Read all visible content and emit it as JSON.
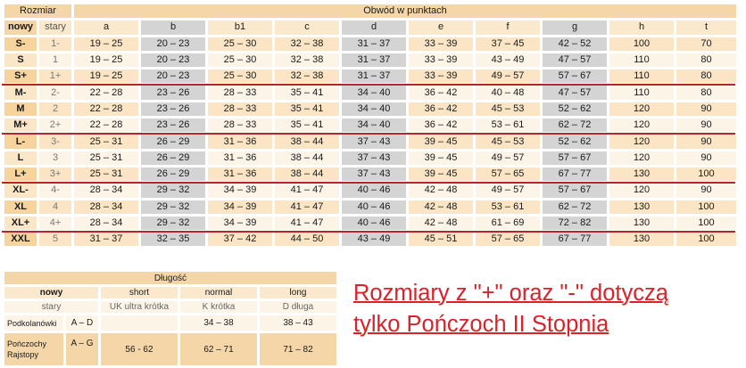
{
  "header": {
    "rozmiar": "Rozmiar",
    "obwod": "Obwód w punktach",
    "nowy": "nowy",
    "stary": "stary",
    "columns": [
      "a",
      "b",
      "b1",
      "c",
      "d",
      "e",
      "f",
      "g",
      "h",
      "t"
    ]
  },
  "rows": [
    {
      "nowy": "S-",
      "stary": "1-",
      "cells": [
        "19 – 25",
        "20 – 23",
        "25 – 30",
        "32 – 38",
        "31 – 37",
        "33 – 39",
        "37 – 45",
        "42 – 52",
        "100",
        "70"
      ]
    },
    {
      "nowy": "S",
      "stary": "1",
      "cells": [
        "19 – 25",
        "20 – 23",
        "25 – 30",
        "32 – 38",
        "31 – 37",
        "33 – 39",
        "43 – 49",
        "47 – 57",
        "110",
        "80"
      ]
    },
    {
      "nowy": "S+",
      "stary": "1+",
      "cells": [
        "19 – 25",
        "20 – 23",
        "25 – 30",
        "32 – 38",
        "31 – 37",
        "33 – 39",
        "49 – 57",
        "57 – 67",
        "110",
        "80"
      ]
    },
    {
      "nowy": "M-",
      "stary": "2-",
      "cells": [
        "22 – 28",
        "23 – 26",
        "28 – 33",
        "35 – 41",
        "34 – 40",
        "36 – 42",
        "40 – 48",
        "47 – 57",
        "110",
        "80"
      ]
    },
    {
      "nowy": "M",
      "stary": "2",
      "cells": [
        "22 – 28",
        "23 – 26",
        "28 – 33",
        "35 – 41",
        "34 – 40",
        "36 – 42",
        "45 – 53",
        "52 – 62",
        "120",
        "90"
      ]
    },
    {
      "nowy": "M+",
      "stary": "2+",
      "cells": [
        "22 – 28",
        "23 – 26",
        "28 – 33",
        "35 – 41",
        "34 – 40",
        "36 – 42",
        "53 – 61",
        "62 – 72",
        "120",
        "90"
      ]
    },
    {
      "nowy": "L-",
      "stary": "3-",
      "cells": [
        "25 – 31",
        "26 – 29",
        "31 – 36",
        "38 – 44",
        "37 – 43",
        "39 – 45",
        "45 – 53",
        "52 – 62",
        "120",
        "90"
      ]
    },
    {
      "nowy": "L",
      "stary": "3",
      "cells": [
        "25 – 31",
        "26 – 29",
        "31 – 36",
        "38 – 44",
        "37 – 43",
        "39 – 45",
        "49 – 57",
        "57 – 67",
        "120",
        "90"
      ]
    },
    {
      "nowy": "L+",
      "stary": "3+",
      "cells": [
        "25 – 31",
        "26 – 29",
        "31 – 36",
        "38 – 44",
        "37 – 43",
        "39 – 45",
        "57 – 65",
        "67 – 77",
        "130",
        "100"
      ]
    },
    {
      "nowy": "XL-",
      "stary": "4-",
      "cells": [
        "28 – 34",
        "29 – 32",
        "34 – 39",
        "41 – 47",
        "40 – 46",
        "42 – 48",
        "49 – 57",
        "57 – 67",
        "120",
        "90"
      ]
    },
    {
      "nowy": "XL",
      "stary": "4",
      "cells": [
        "28 – 34",
        "29 – 32",
        "34 – 39",
        "41 – 47",
        "40 – 46",
        "42 – 48",
        "53 – 61",
        "62 – 72",
        "130",
        "100"
      ]
    },
    {
      "nowy": "XL+",
      "stary": "4+",
      "cells": [
        "28 – 34",
        "29 – 32",
        "34 – 39",
        "41 – 47",
        "40 – 46",
        "42 – 48",
        "61 – 69",
        "72 – 82",
        "130",
        "100"
      ]
    },
    {
      "nowy": "XXL",
      "stary": "5",
      "cells": [
        "31 – 37",
        "32 – 35",
        "37 – 42",
        "44 – 50",
        "43 – 49",
        "45 – 51",
        "57 – 65",
        "67 – 77",
        "130",
        "100"
      ]
    }
  ],
  "length": {
    "title": "Długość",
    "nowy": "nowy",
    "stary": "stary",
    "short": "short",
    "short_old": "UK ultra krótka",
    "normal": "normal",
    "normal_old": "K krótka",
    "long": "long",
    "long_old": "D długa",
    "row1": {
      "name": "Podkolanówki",
      "range": "A – D",
      "short": "",
      "normal": "34 – 38",
      "long": "38 – 43"
    },
    "row2": {
      "name1": "Pończochy",
      "name2": "Rajstopy",
      "range": "A – G",
      "short": "56 - 62",
      "normal": "62 – 71",
      "long": "71 – 82"
    }
  },
  "note": {
    "line1": "Rozmiary z \"+\" oraz \"-\" dotyczą",
    "line2": "tylko Pończoch II Stopnia"
  },
  "colors": {
    "accent_red": "#d8232a",
    "separator": "#b3262b",
    "peach": "#f4d6a8",
    "gray": "#d4d4d4"
  }
}
